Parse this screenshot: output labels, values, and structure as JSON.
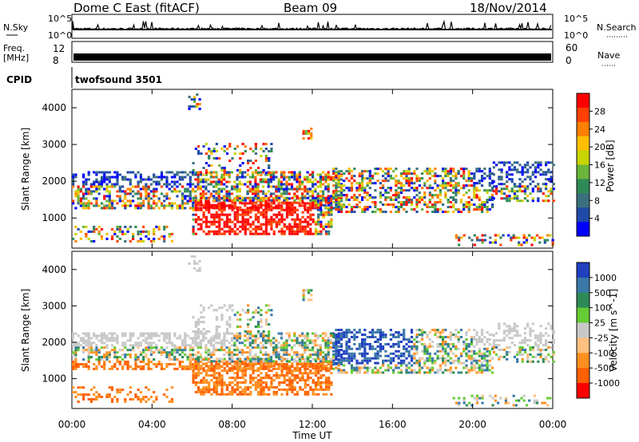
{
  "header": {
    "station": "Dome C East (fitACF)",
    "beam": "Beam 09",
    "date": "18/Nov/2014"
  },
  "strips": {
    "nsky_label": "N.Sky",
    "nsky_ticks": [
      "10^5",
      "10^0"
    ],
    "nsearch_label": "N.Search",
    "nsearch_ticks": [
      "10^5",
      "10^0"
    ],
    "freq_label_1": "Freq.",
    "freq_label_2": "[MHz]",
    "freq_ticks": [
      "12",
      "8"
    ],
    "nave_label": "Nave",
    "nave_ticks": [
      "60",
      "0"
    ],
    "cpid_label": "CPID",
    "cpid_value": "twofsound 3501"
  },
  "chart_data": [
    {
      "type": "heatmap",
      "name": "power",
      "ylabel": "Slant Range [km]",
      "yticks": [
        "1000",
        "2000",
        "3000",
        "4000"
      ],
      "colorbar_label": "Power [dB]",
      "colorbar_ticks": [
        "28",
        "24",
        "20",
        "16",
        "12",
        "8",
        "4"
      ],
      "colorbar_colors": [
        "#ff0000",
        "#ff4000",
        "#ff8000",
        "#ffbf00",
        "#c8d400",
        "#6ab53a",
        "#2e8b57",
        "#3b6f7e",
        "#1f4aa8",
        "#0000ff"
      ]
    },
    {
      "type": "heatmap",
      "name": "velocity",
      "ylabel": "Slant Range [km]",
      "yticks": [
        "1000",
        "2000",
        "3000",
        "4000"
      ],
      "colorbar_label": "Velocity [m s^-1]",
      "colorbar_ticks": [
        "1000",
        "500",
        "100",
        "25",
        "-25",
        "-100",
        "-500",
        "-1000"
      ],
      "colorbar_colors": [
        "#2040c0",
        "#3a78a8",
        "#2e8b57",
        "#66cc33",
        "#c8c8c8",
        "#ffc080",
        "#ff9020",
        "#ff6000",
        "#ff0000"
      ]
    }
  ],
  "xaxis": {
    "label": "Time UT",
    "ticks": [
      "00:00",
      "04:00",
      "08:00",
      "12:00",
      "16:00",
      "20:00",
      "00:00"
    ]
  }
}
